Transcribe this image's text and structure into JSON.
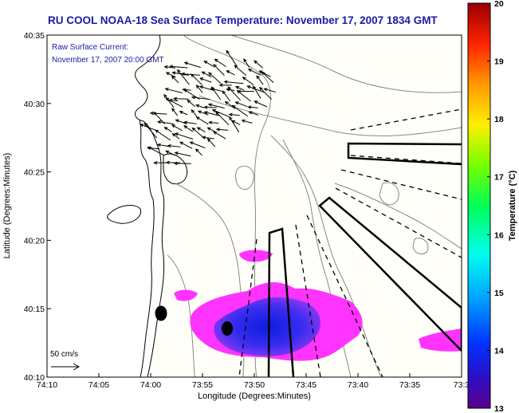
{
  "title": "RU COOL  NOAA-18  Sea Surface Temperature:  November 17, 2007 1834 GMT",
  "current_note": {
    "line1": "Raw Surface Current:",
    "line2": "November 17, 2007 20:00 GMT"
  },
  "x_axis": {
    "label": "Longitude (Degrees:Minutes)",
    "ticks": [
      "74:10",
      "74:05",
      "74:00",
      "73:55",
      "73:50",
      "73:45",
      "73:40",
      "73:35",
      "73:3"
    ]
  },
  "y_axis": {
    "label": "Latitude (Degrees:Minutes)",
    "ticks": [
      "40:35",
      "40:30",
      "40:25",
      "40:20",
      "40:15",
      "40:10"
    ]
  },
  "colorbar": {
    "label": "Temperature (°C)",
    "ticks": [
      "20",
      "19",
      "18",
      "17",
      "16",
      "15",
      "14",
      "13"
    ],
    "range": [
      13,
      20
    ]
  },
  "scale_arrow": {
    "label": "50 cm/s"
  },
  "colors": {
    "title": "#1a1aa8",
    "land": "#ffffff",
    "water": "#fffef8",
    "contour": "#888888",
    "warm_patch": "#ff33ff",
    "cold_patch": "#2222ee"
  }
}
